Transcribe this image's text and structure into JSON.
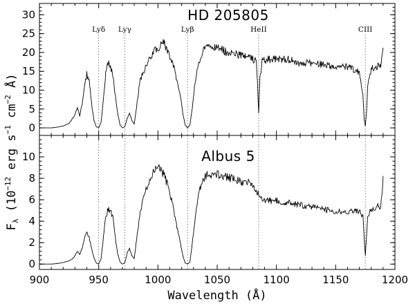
{
  "figure": {
    "xlabel": "Wavelength (Å)",
    "ylabel": "F",
    "ylabel_sub": "λ",
    "ylabel_units": "(10",
    "ylabel_units_exp": "−12",
    "ylabel_units_rest": " erg s",
    "ylabel_units_exp2": "−1",
    "ylabel_units_rest2": " cm",
    "ylabel_units_exp3": "−2",
    "ylabel_units_rest3": " Å)"
  },
  "chart_data": [
    {
      "type": "line",
      "title": "HD 205805",
      "xlim": [
        900,
        1200
      ],
      "ylim": [
        -2,
        33
      ],
      "x_ticks": [
        900,
        950,
        1000,
        1050,
        1100,
        1150,
        1200
      ],
      "y_ticks": [
        0,
        5,
        10,
        15,
        20,
        25,
        30
      ],
      "spectral_lines": [
        {
          "label": "Lyδ",
          "x": 950
        },
        {
          "label": "Lyγ",
          "x": 972
        },
        {
          "label": "Lyβ",
          "x": 1025
        },
        {
          "label": "HeII",
          "x": 1085
        },
        {
          "label": "CIII",
          "x": 1175
        }
      ],
      "series": [
        {
          "x": [
            900,
            905,
            910,
            915,
            920,
            925,
            928,
            930,
            932,
            934,
            936,
            938,
            940,
            942,
            944,
            946,
            948,
            950,
            952,
            954,
            956,
            958,
            960,
            962,
            964,
            966,
            968,
            970,
            972,
            974,
            976,
            978,
            980,
            985,
            990,
            995,
            1000,
            1005,
            1008,
            1012,
            1016,
            1019,
            1021,
            1023,
            1025,
            1027,
            1029,
            1031,
            1034,
            1038,
            1042,
            1046,
            1050,
            1055,
            1060,
            1065,
            1070,
            1075,
            1080,
            1083,
            1084,
            1085,
            1086,
            1088,
            1092,
            1100,
            1110,
            1120,
            1130,
            1140,
            1150,
            1160,
            1170,
            1173,
            1174,
            1175,
            1176,
            1177,
            1180,
            1185,
            1188,
            1190
          ],
          "y": [
            0,
            0,
            0,
            0.2,
            0.5,
            1.2,
            2.5,
            3.5,
            5.5,
            3.2,
            6.5,
            11.5,
            14.5,
            12.5,
            6.5,
            2,
            0.3,
            0,
            1.5,
            7.5,
            14.5,
            17.5,
            16.5,
            14,
            8.5,
            4,
            0.8,
            0,
            0.3,
            2.5,
            4,
            2,
            1,
            13,
            16.5,
            20,
            21.5,
            23,
            21,
            18,
            13,
            8.5,
            4,
            0.8,
            0,
            0.8,
            5.5,
            11,
            17,
            20.5,
            22.5,
            21.5,
            21.5,
            21,
            20,
            20,
            19.5,
            19,
            18.5,
            18,
            12,
            4,
            13,
            18,
            18.5,
            18.5,
            18.5,
            17.5,
            17.5,
            17,
            16.5,
            16.5,
            15,
            9,
            2.5,
            0.5,
            4,
            11,
            16,
            16.5,
            17,
            21.5
          ]
        }
      ]
    },
    {
      "type": "line",
      "title": "Albus 5",
      "xlim": [
        900,
        1200
      ],
      "ylim": [
        -0.5,
        12
      ],
      "x_ticks": [
        900,
        950,
        1000,
        1050,
        1100,
        1150,
        1200
      ],
      "y_ticks": [
        0,
        2,
        4,
        6,
        8,
        10
      ],
      "spectral_lines": [
        {
          "label": "",
          "x": 950
        },
        {
          "label": "",
          "x": 972
        },
        {
          "label": "",
          "x": 1025
        },
        {
          "label": "",
          "x": 1085
        },
        {
          "label": "",
          "x": 1175
        }
      ],
      "series": [
        {
          "x": [
            900,
            905,
            910,
            915,
            920,
            925,
            928,
            930,
            932,
            934,
            936,
            938,
            940,
            942,
            944,
            946,
            948,
            950,
            952,
            954,
            956,
            958,
            960,
            962,
            964,
            966,
            968,
            970,
            972,
            974,
            976,
            978,
            980,
            985,
            990,
            995,
            1000,
            1005,
            1008,
            1012,
            1016,
            1019,
            1021,
            1023,
            1025,
            1027,
            1029,
            1031,
            1034,
            1038,
            1042,
            1046,
            1050,
            1055,
            1060,
            1065,
            1070,
            1075,
            1080,
            1083,
            1085,
            1088,
            1092,
            1100,
            1110,
            1120,
            1130,
            1140,
            1150,
            1160,
            1170,
            1173,
            1174,
            1175,
            1176,
            1177,
            1180,
            1185,
            1188,
            1190
          ],
          "y": [
            0,
            0,
            0,
            0.05,
            0.15,
            0.3,
            0.5,
            0.8,
            1.2,
            0.9,
            1.5,
            2.5,
            3,
            2.5,
            1.5,
            0.6,
            0.1,
            0,
            0.5,
            2.5,
            4.5,
            5.2,
            5,
            4.5,
            2.5,
            1,
            0.2,
            0,
            0.1,
            1,
            1.5,
            0.8,
            0.5,
            5,
            7,
            8.5,
            9.2,
            8.5,
            7.5,
            6,
            3.5,
            2,
            0.8,
            0.1,
            0,
            0.2,
            2,
            4,
            6.5,
            8,
            8.5,
            8.5,
            8.5,
            8.3,
            8.2,
            8,
            7.8,
            7.8,
            7.5,
            7,
            6.5,
            6.2,
            6,
            6,
            5.8,
            5.6,
            5.4,
            5.2,
            5,
            5,
            5,
            4.5,
            2.5,
            0.8,
            2.5,
            4.5,
            5.2,
            5.5,
            5.5,
            8
          ]
        }
      ]
    }
  ]
}
